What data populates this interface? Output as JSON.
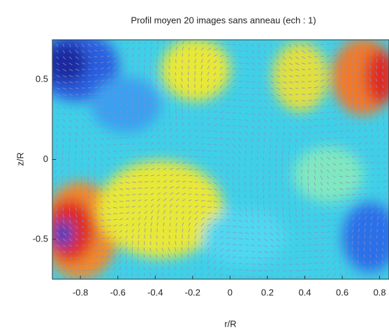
{
  "chart_data": {
    "type": "field",
    "title": "Profil moyen 20 images sans anneau (ech : 1)",
    "xlabel": "r/R",
    "ylabel": "z/R",
    "xlim": [
      -0.95,
      0.85
    ],
    "ylim": [
      -0.75,
      0.75
    ],
    "xticks": [
      -0.8,
      -0.6,
      -0.4,
      -0.2,
      0,
      0.2,
      0.4,
      0.6,
      0.8
    ],
    "yticks": [
      -0.5,
      0,
      0.5
    ]
  }
}
